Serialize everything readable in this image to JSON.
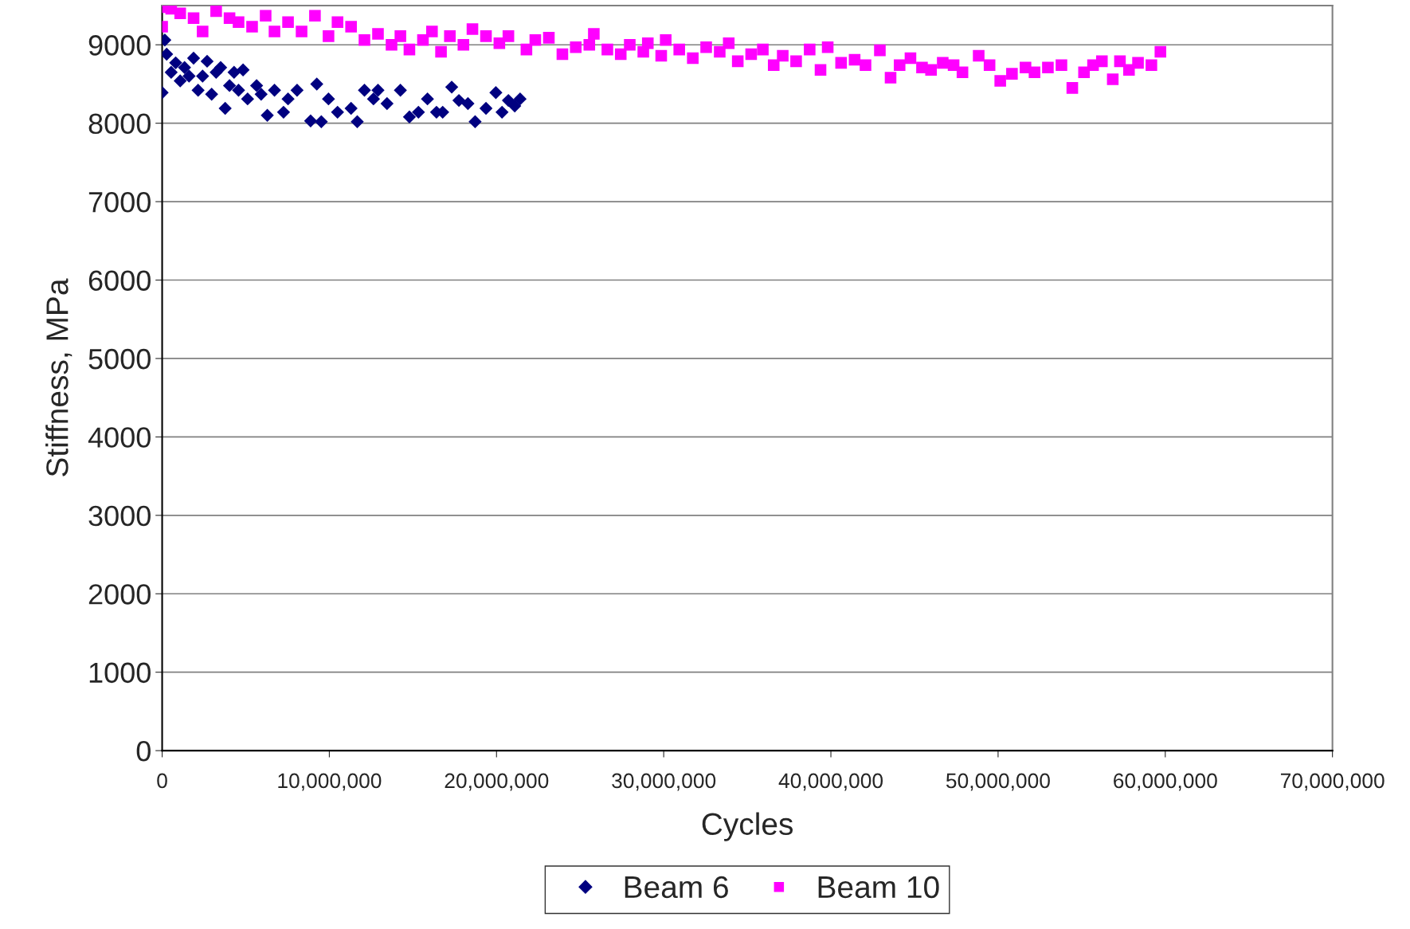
{
  "chart_data": {
    "type": "scatter",
    "xlabel": "Cycles",
    "ylabel": "Stiffness, MPa",
    "xlim": [
      0,
      70000000
    ],
    "ylim": [
      0,
      9500
    ],
    "xticks": [
      {
        "value": 0,
        "label": "0"
      },
      {
        "value": 10000000,
        "label": "10,000,000"
      },
      {
        "value": 20000000,
        "label": "20,000,000"
      },
      {
        "value": 30000000,
        "label": "30,000,000"
      },
      {
        "value": 40000000,
        "label": "40,000,000"
      },
      {
        "value": 50000000,
        "label": "50,000,000"
      },
      {
        "value": 60000000,
        "label": "60,000,000"
      },
      {
        "value": 70000000,
        "label": "70,000,000"
      }
    ],
    "yticks": [
      0,
      1000,
      2000,
      3000,
      4000,
      5000,
      6000,
      7000,
      8000,
      9000
    ],
    "grid": "y",
    "legend": "bottom",
    "series": [
      {
        "name": "Beam 6",
        "color": "#000080",
        "marker": "diamond",
        "x": [
          0,
          160000,
          270000,
          540000,
          810000,
          1080000,
          1340000,
          1610000,
          1880000,
          2150000,
          2420000,
          2690000,
          2960000,
          3230000,
          3500000,
          3770000,
          4030000,
          4300000,
          4570000,
          4840000,
          5110000,
          5650000,
          5920000,
          6290000,
          6720000,
          7260000,
          7530000,
          8070000,
          8880000,
          9250000,
          9520000,
          9950000,
          10490000,
          11300000,
          11670000,
          12100000,
          12640000,
          12910000,
          13450000,
          14250000,
          14790000,
          15330000,
          15870000,
          16410000,
          16780000,
          17320000,
          17750000,
          18290000,
          18720000,
          19370000,
          19960000,
          20330000,
          20710000,
          21090000,
          21410000
        ],
        "values": [
          8390,
          9060,
          8880,
          8650,
          8770,
          8540,
          8710,
          8600,
          8830,
          8420,
          8600,
          8790,
          8370,
          8650,
          8710,
          8190,
          8480,
          8650,
          8420,
          8680,
          8310,
          8480,
          8370,
          8100,
          8420,
          8140,
          8310,
          8420,
          8030,
          8500,
          8020,
          8310,
          8140,
          8190,
          8020,
          8420,
          8310,
          8420,
          8250,
          8420,
          8080,
          8140,
          8310,
          8140,
          8140,
          8460,
          8290,
          8250,
          8020,
          8190,
          8390,
          8140,
          8290,
          8220,
          8310
        ]
      },
      {
        "name": "Beam 10",
        "color": "#ff00ff",
        "marker": "square",
        "x": [
          0,
          110000,
          540000,
          1080000,
          1880000,
          2420000,
          3230000,
          4030000,
          4570000,
          5380000,
          6190000,
          6720000,
          7530000,
          8340000,
          9140000,
          9950000,
          10490000,
          11300000,
          12100000,
          12910000,
          13720000,
          14250000,
          14790000,
          15600000,
          16140000,
          16680000,
          17210000,
          18020000,
          18560000,
          19370000,
          20170000,
          20710000,
          21790000,
          22320000,
          23130000,
          23940000,
          24740000,
          25550000,
          25820000,
          26630000,
          27430000,
          27970000,
          28780000,
          29050000,
          29850000,
          30120000,
          30930000,
          31740000,
          32540000,
          33350000,
          33890000,
          34430000,
          35230000,
          35930000,
          36580000,
          37120000,
          37920000,
          38730000,
          39380000,
          39810000,
          40610000,
          41420000,
          42070000,
          42930000,
          43570000,
          44110000,
          44760000,
          45450000,
          45990000,
          46690000,
          47340000,
          47870000,
          48840000,
          49490000,
          50130000,
          50830000,
          51640000,
          52180000,
          52980000,
          53790000,
          54440000,
          55140000,
          55680000,
          56210000,
          56860000,
          57290000,
          57830000,
          58370000,
          59170000,
          59710000
        ],
        "values": [
          9230,
          9480,
          9460,
          9400,
          9340,
          9170,
          9430,
          9340,
          9290,
          9230,
          9370,
          9170,
          9290,
          9170,
          9370,
          9110,
          9290,
          9230,
          9060,
          9140,
          9000,
          9110,
          8940,
          9060,
          9170,
          8910,
          9110,
          9000,
          9200,
          9110,
          9020,
          9110,
          8940,
          9060,
          9090,
          8880,
          8970,
          9000,
          9140,
          8940,
          8880,
          9000,
          8910,
          9020,
          8860,
          9060,
          8940,
          8830,
          8970,
          8910,
          9020,
          8790,
          8880,
          8940,
          8740,
          8860,
          8790,
          8940,
          8680,
          8970,
          8770,
          8810,
          8740,
          8930,
          8580,
          8740,
          8830,
          8710,
          8680,
          8770,
          8740,
          8650,
          8860,
          8740,
          8540,
          8630,
          8710,
          8650,
          8710,
          8740,
          8450,
          8650,
          8740,
          8790,
          8560,
          8790,
          8680,
          8770,
          8740,
          8910
        ]
      }
    ]
  }
}
